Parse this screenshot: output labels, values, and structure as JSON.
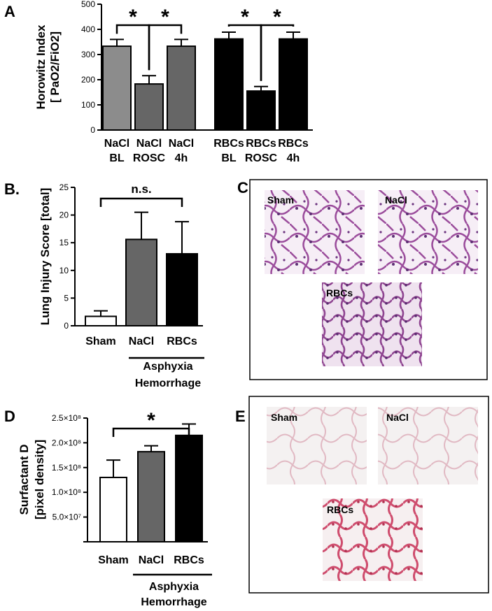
{
  "panels": {
    "A": "A",
    "B": "B.",
    "C": "C",
    "D": "D",
    "E": "E"
  },
  "chart_data": [
    {
      "id": "A",
      "type": "bar",
      "categories": [
        [
          "NaCl",
          "BL"
        ],
        [
          "NaCl",
          "ROSC"
        ],
        [
          "NaCl",
          "4h"
        ],
        [
          "RBCs",
          "BL"
        ],
        [
          "RBCs",
          "ROSC"
        ],
        [
          "RBCs",
          "4h"
        ]
      ],
      "values": [
        333,
        183,
        333,
        362,
        155,
        362
      ],
      "errors": [
        27,
        33,
        27,
        27,
        18,
        27
      ],
      "colors": [
        "#8c8c8c",
        "#666666",
        "#666666",
        "#000000",
        "#000000",
        "#000000"
      ],
      "ylabel": [
        "Horowitz Index",
        "[ PaO2/FiO2]"
      ],
      "ylim": [
        0,
        500
      ],
      "yticks": [
        "0",
        "100",
        "200",
        "300",
        "400",
        "500"
      ],
      "ytick_values": [
        0,
        100,
        200,
        300,
        400,
        500
      ],
      "significance": [
        {
          "from": 0,
          "to": 1,
          "label": "*"
        },
        {
          "from": 1,
          "to": 2,
          "label": "*"
        },
        {
          "from": 3,
          "to": 4,
          "label": "*"
        },
        {
          "from": 4,
          "to": 5,
          "label": "*"
        }
      ]
    },
    {
      "id": "B",
      "type": "bar",
      "categories": [
        "Sham",
        "NaCl",
        "RBCs"
      ],
      "values": [
        1.7,
        15.6,
        13.0
      ],
      "errors": [
        1.0,
        4.9,
        5.8
      ],
      "colors": [
        "#ffffff",
        "#666666",
        "#000000"
      ],
      "ylabel": [
        "Lung Injury Score [total]"
      ],
      "ylim": [
        0,
        25
      ],
      "yticks": [
        "0",
        "5",
        "10",
        "15",
        "20",
        "25"
      ],
      "ytick_values": [
        0,
        5,
        10,
        15,
        20,
        25
      ],
      "group_label": [
        "Asphyxia",
        "Hemorrhage"
      ],
      "significance": [
        {
          "from": 0,
          "to": 2,
          "label": "n.s."
        }
      ]
    },
    {
      "id": "D",
      "type": "bar",
      "categories": [
        "Sham",
        "NaCl",
        "RBCs"
      ],
      "values": [
        130000000.0,
        182000000.0,
        215000000.0
      ],
      "errors": [
        35000000.0,
        12000000.0,
        23000000.0
      ],
      "colors": [
        "#ffffff",
        "#666666",
        "#000000"
      ],
      "ylabel": [
        "Surfactant D",
        "[pixel density]"
      ],
      "ylim": [
        0,
        250000000.0
      ],
      "yticks": [
        "",
        "5.0×10⁷",
        "1.0×10⁸",
        "1.5×10⁸",
        "2.0×10⁸",
        "2.5×10⁸"
      ],
      "ytick_values": [
        0,
        50000000.0,
        100000000.0,
        150000000.0,
        200000000.0,
        250000000.0
      ],
      "group_label": [
        "Asphyxia",
        "Hemorrhage"
      ],
      "significance": [
        {
          "from": 0,
          "to": 2,
          "label": "*"
        }
      ]
    }
  ],
  "micrographs": {
    "C": [
      "Sham",
      "NaCl",
      "RBCs"
    ],
    "E": [
      "Sham",
      "NaCl",
      "RBCs"
    ]
  }
}
